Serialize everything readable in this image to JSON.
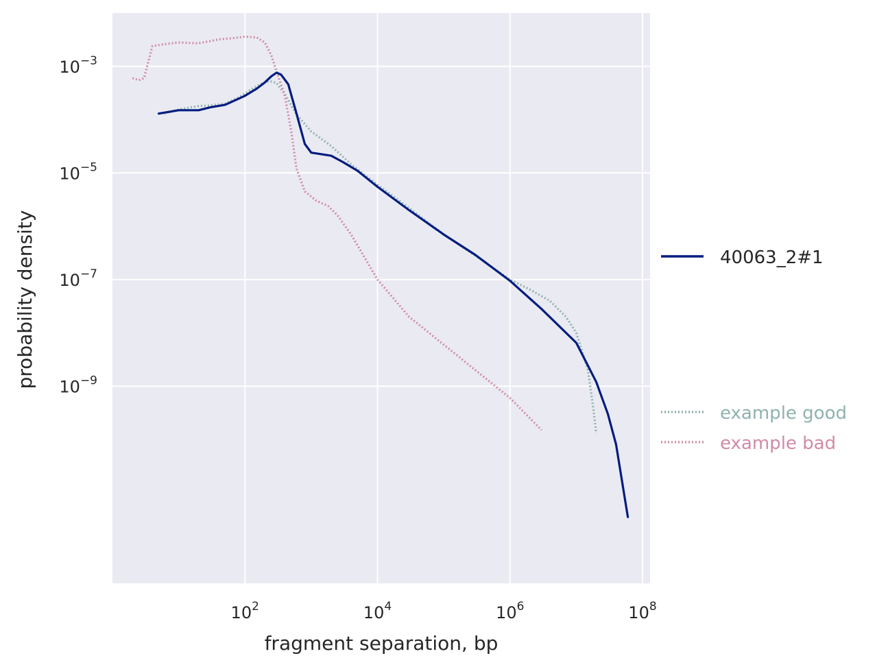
{
  "chart_data": {
    "type": "line",
    "xlabel": "fragment separation, bp",
    "ylabel": "probability density",
    "xscale": "log",
    "yscale": "log",
    "xlim": [
      1.0,
      130000000
    ],
    "ylim": [
      2e-13,
      0.01
    ],
    "grid": true,
    "x_ticks": [
      {
        "base": "10",
        "exp": "2",
        "value": 100
      },
      {
        "base": "10",
        "exp": "4",
        "value": 10000
      },
      {
        "base": "10",
        "exp": "6",
        "value": 1000000
      },
      {
        "base": "10",
        "exp": "8",
        "value": 100000000
      }
    ],
    "y_ticks": [
      {
        "base": "10",
        "exp": "−3",
        "value": 0.001
      },
      {
        "base": "10",
        "exp": "−5",
        "value": 1e-05
      },
      {
        "base": "10",
        "exp": "−7",
        "value": 1e-07
      },
      {
        "base": "10",
        "exp": "−9",
        "value": 1e-09
      }
    ],
    "series": [
      {
        "name": "example good",
        "color": "#8fb2ae",
        "style": "dotted",
        "points": [
          [
            6,
            0.00013
          ],
          [
            10,
            0.000155
          ],
          [
            20,
            0.00018
          ],
          [
            30,
            0.000185
          ],
          [
            50,
            0.0002
          ],
          [
            80,
            0.00026
          ],
          [
            120,
            0.00036
          ],
          [
            170,
            0.00046
          ],
          [
            230,
            0.00053
          ],
          [
            300,
            0.00049
          ],
          [
            400,
            0.0003
          ],
          [
            600,
            0.000125
          ],
          [
            1000,
            6e-05
          ],
          [
            2000,
            3.2e-05
          ],
          [
            4000,
            1.45e-05
          ],
          [
            10000,
            6e-06
          ],
          [
            30000,
            2.2e-06
          ],
          [
            100000,
            7e-07
          ],
          [
            300000,
            2.8e-07
          ],
          [
            1000000,
            1e-07
          ],
          [
            2000000,
            6.5e-08
          ],
          [
            4000000,
            4e-08
          ],
          [
            7000000,
            2e-08
          ],
          [
            10000000,
            1e-08
          ],
          [
            15000000,
            2e-09
          ],
          [
            18000000,
            4e-10
          ],
          [
            20000000,
            1.3e-10
          ]
        ]
      },
      {
        "name": "example bad",
        "color": "#d08ba6",
        "style": "dotted",
        "points": [
          [
            2,
            0.0006
          ],
          [
            2.5,
            0.00055
          ],
          [
            3,
            0.0006
          ],
          [
            4,
            0.0024
          ],
          [
            6,
            0.0026
          ],
          [
            10,
            0.0028
          ],
          [
            20,
            0.0027
          ],
          [
            40,
            0.0032
          ],
          [
            70,
            0.0034
          ],
          [
            100,
            0.0036
          ],
          [
            150,
            0.0035
          ],
          [
            200,
            0.0028
          ],
          [
            250,
            0.0016
          ],
          [
            300,
            0.0008
          ],
          [
            400,
            0.00028
          ],
          [
            500,
            6e-05
          ],
          [
            600,
            1.2e-05
          ],
          [
            800,
            4.5e-06
          ],
          [
            1200,
            3e-06
          ],
          [
            1800,
            2.4e-06
          ],
          [
            2500,
            1.6e-06
          ],
          [
            4000,
            7e-07
          ],
          [
            10000,
            1e-07
          ],
          [
            30000,
            2e-08
          ],
          [
            100000,
            6e-09
          ],
          [
            300000,
            2e-09
          ],
          [
            1000000,
            6e-10
          ],
          [
            3000000,
            1.5e-10
          ]
        ]
      },
      {
        "name": "40063_2#1",
        "color": "#001c7f",
        "style": "solid",
        "points": [
          [
            5,
            0.00013
          ],
          [
            10,
            0.00015
          ],
          [
            20,
            0.00015
          ],
          [
            30,
            0.00017
          ],
          [
            50,
            0.00019
          ],
          [
            100,
            0.00028
          ],
          [
            150,
            0.00038
          ],
          [
            200,
            0.0005
          ],
          [
            250,
            0.00065
          ],
          [
            300,
            0.00076
          ],
          [
            350,
            0.0007
          ],
          [
            450,
            0.00046
          ],
          [
            600,
            0.00013
          ],
          [
            800,
            3.5e-05
          ],
          [
            1000,
            2.4e-05
          ],
          [
            2000,
            2.1e-05
          ],
          [
            3000,
            1.6e-05
          ],
          [
            5000,
            1.1e-05
          ],
          [
            10000,
            5.5e-06
          ],
          [
            30000,
            2e-06
          ],
          [
            100000,
            7e-07
          ],
          [
            300000,
            2.9e-07
          ],
          [
            1000000,
            9.5e-08
          ],
          [
            3000000,
            2.8e-08
          ],
          [
            10000000,
            6.5e-09
          ],
          [
            20000000,
            1.2e-09
          ],
          [
            30000000,
            3e-10
          ],
          [
            40000000,
            8e-11
          ],
          [
            60000000,
            3.5e-12
          ]
        ]
      }
    ],
    "legend_upper": [
      "40063_2#1"
    ],
    "legend_lower": [
      "example good",
      "example bad"
    ],
    "legend_placement": "outside-right"
  }
}
